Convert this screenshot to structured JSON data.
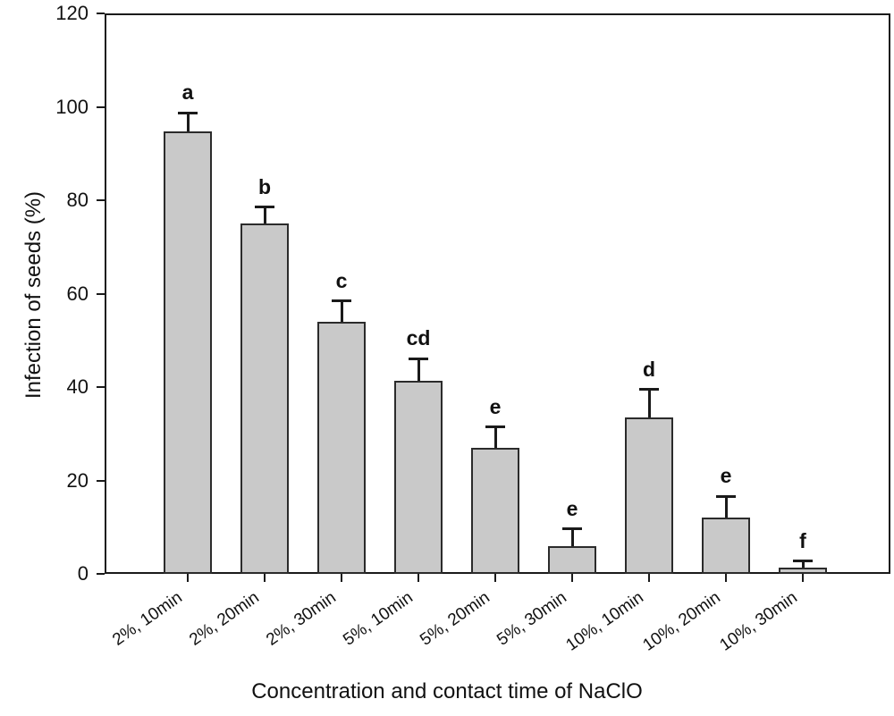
{
  "figure": {
    "background": "#ffffff"
  },
  "chart_data": {
    "type": "bar",
    "title": "",
    "xlabel": "Concentration and contact time of NaClO",
    "ylabel": "Infection of seeds  (%)",
    "categories": [
      "2%, 10min",
      "2%, 20min",
      "2%, 30min",
      "5%, 10min",
      "5%, 20min",
      "5%, 30min",
      "10%, 10min",
      "10%, 20min",
      "10%, 30min"
    ],
    "values": [
      94.7,
      75.0,
      54.0,
      41.4,
      27.0,
      6.0,
      33.4,
      12.0,
      1.3
    ],
    "error_upper": [
      4.0,
      3.5,
      4.4,
      4.7,
      4.4,
      3.6,
      6.1,
      4.6,
      1.4
    ],
    "significance_letters": [
      "a",
      "b",
      "c",
      "cd",
      "e",
      "e",
      "d",
      "e",
      "f"
    ],
    "ylim": [
      0,
      120
    ],
    "yticks": [
      0,
      20,
      40,
      60,
      80,
      100,
      120
    ],
    "grid": false,
    "legend": false,
    "bar_fill": "#c9c9c9",
    "bar_border": "#2b2b2b",
    "axis_color": "#1a1a1a",
    "xtick_rotation_deg": -35
  }
}
